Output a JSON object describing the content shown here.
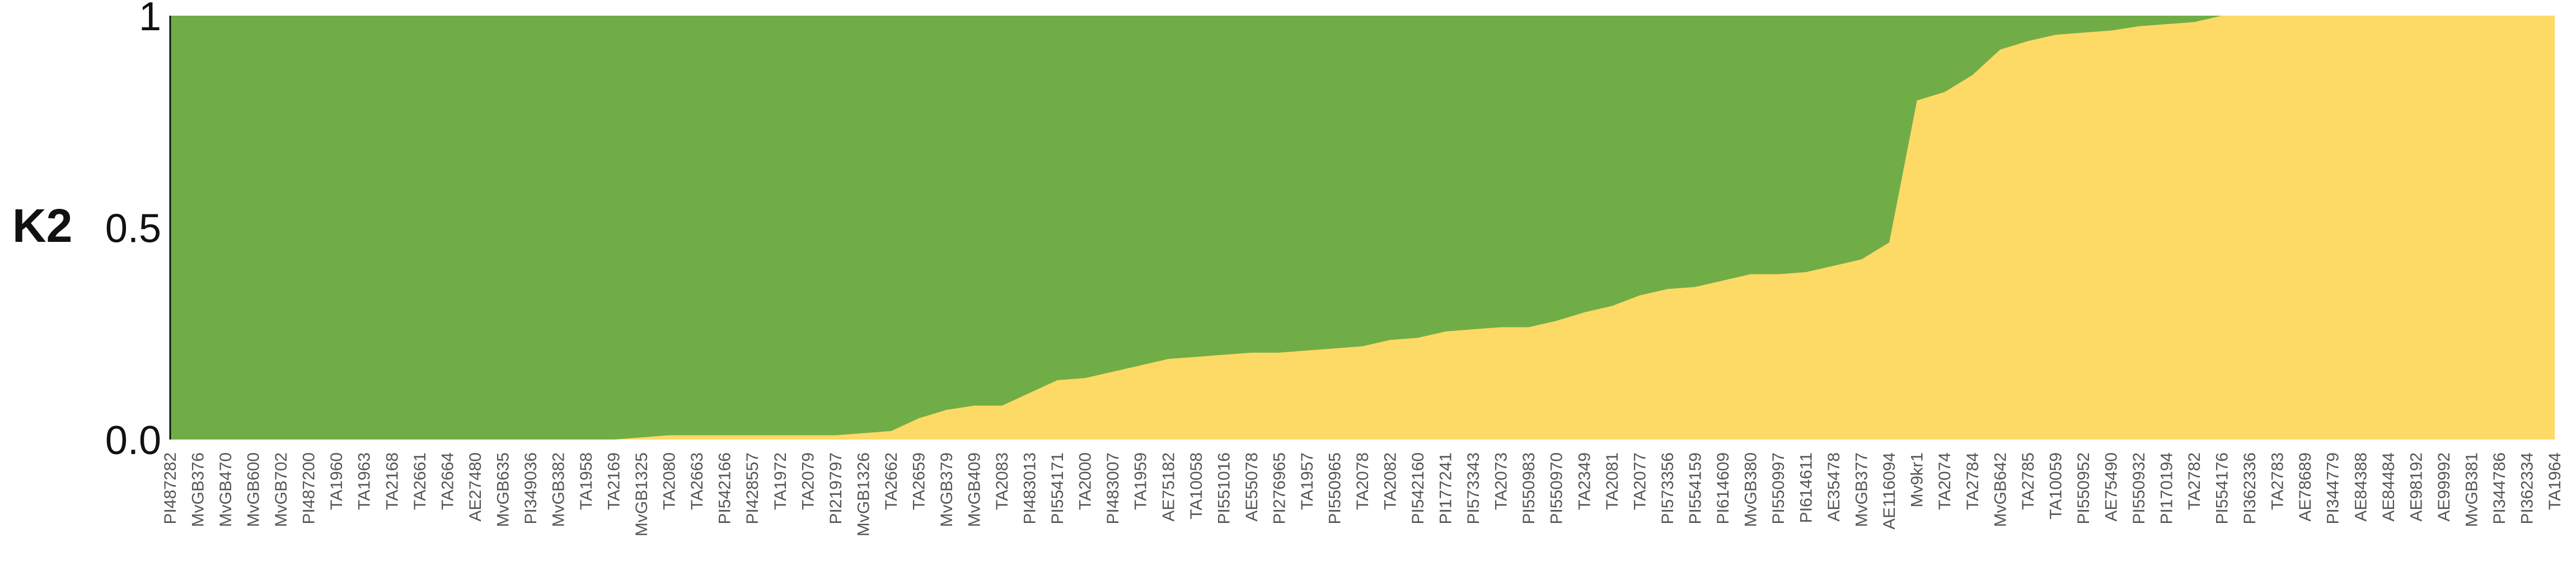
{
  "chart_data": {
    "type": "area",
    "title": "",
    "panel_label": "K2",
    "y_ticks": [
      "1",
      "0.5",
      "0.0"
    ],
    "ylim": [
      0,
      1
    ],
    "series": [
      {
        "name": "",
        "color": "#70ad47"
      },
      {
        "name": "",
        "color": "#fdd966"
      }
    ],
    "stacked": true,
    "labels": [
      "PI487282",
      "MvGB376",
      "MvGB470",
      "MvGB600",
      "MvGB702",
      "PI487200",
      "TA1960",
      "TA1963",
      "TA2168",
      "TA2661",
      "TA2664",
      "AE27480",
      "MvGB635",
      "PI349036",
      "MvGB382",
      "TA1958",
      "TA2169",
      "MvGB1325",
      "TA2080",
      "TA2663",
      "PI542166",
      "PI428557",
      "TA1972",
      "TA2079",
      "PI219797",
      "MvGB1326",
      "TA2662",
      "TA2659",
      "MvGB379",
      "MvGB409",
      "TA2083",
      "PI483013",
      "PI554171",
      "TA2000",
      "PI483007",
      "TA1959",
      "AE75182",
      "TA10058",
      "PI551016",
      "AE55078",
      "PI276965",
      "TA1957",
      "PI550965",
      "TA2078",
      "TA2082",
      "PI542160",
      "PI177241",
      "PI573343",
      "TA2073",
      "PI550983",
      "PI550970",
      "TA2349",
      "TA2081",
      "TA2077",
      "PI573356",
      "PI554159",
      "PI614609",
      "MvGB380",
      "PI550997",
      "PI614611",
      "AE35478",
      "MvGB377",
      "AE116094",
      "Mv9kr1",
      "TA2074",
      "TA2784",
      "MvGB642",
      "TA2785",
      "TA10059",
      "PI550952",
      "AE75490",
      "PI550932",
      "PI170194",
      "TA2782",
      "PI554176",
      "PI362336",
      "TA2783",
      "AE78689",
      "PI344779",
      "AE84388",
      "AE84484",
      "AE98192",
      "AE99992",
      "MvGB381",
      "PI344786",
      "PI362334",
      "TA1964"
    ],
    "yellow_values": [
      0,
      0,
      0,
      0,
      0,
      0,
      0,
      0,
      0,
      0,
      0,
      0,
      0,
      0,
      0,
      0,
      0,
      0.005,
      0.01,
      0.01,
      0.01,
      0.01,
      0.01,
      0.01,
      0.01,
      0.015,
      0.02,
      0.05,
      0.07,
      0.08,
      0.08,
      0.11,
      0.14,
      0.145,
      0.16,
      0.175,
      0.19,
      0.195,
      0.2,
      0.205,
      0.205,
      0.21,
      0.215,
      0.22,
      0.235,
      0.24,
      0.255,
      0.26,
      0.265,
      0.265,
      0.28,
      0.3,
      0.315,
      0.34,
      0.355,
      0.36,
      0.375,
      0.39,
      0.39,
      0.395,
      0.41,
      0.425,
      0.465,
      0.8,
      0.82,
      0.86,
      0.92,
      0.94,
      0.955,
      0.96,
      0.965,
      0.975,
      0.98,
      0.985,
      1,
      1,
      1,
      1,
      1,
      1,
      1,
      1,
      1,
      1,
      1,
      1,
      1
    ]
  }
}
